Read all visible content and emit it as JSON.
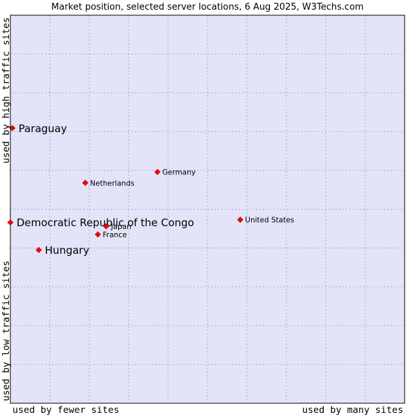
{
  "chart_data": {
    "type": "scatter",
    "title": "Market position, selected server locations, 6 Aug 2025, W3Techs.com",
    "xlabel_left": "used by fewer sites",
    "xlabel_right": "used by many sites",
    "ylabel_bottom": "used by low traffic sites",
    "ylabel_top": "used by high traffic sites",
    "xlim": [
      0,
      100
    ],
    "ylim": [
      0,
      100
    ],
    "grid": true,
    "legend": "none",
    "colors": {
      "plot_background": "#e3e4f7",
      "grid": "#a9a9c9",
      "border": "#000000",
      "marker": "#ff0000",
      "marker_outline": "#990000"
    },
    "points": [
      {
        "label": "Paraguay",
        "x": 0.5,
        "y": 70.9,
        "emphasis": true
      },
      {
        "label": "Germany",
        "x": 37.3,
        "y": 59.6,
        "emphasis": false
      },
      {
        "label": "Netherlands",
        "x": 19.0,
        "y": 56.8,
        "emphasis": false
      },
      {
        "label": "United States",
        "x": 58.3,
        "y": 47.3,
        "emphasis": false
      },
      {
        "label": "Democratic Republic of the Congo",
        "x": 0.0,
        "y": 46.6,
        "emphasis": true
      },
      {
        "label": "Japan",
        "x": 24.3,
        "y": 45.6,
        "emphasis": false
      },
      {
        "label": "France",
        "x": 22.2,
        "y": 43.5,
        "emphasis": false
      },
      {
        "label": "Hungary",
        "x": 7.2,
        "y": 39.5,
        "emphasis": true
      }
    ]
  }
}
